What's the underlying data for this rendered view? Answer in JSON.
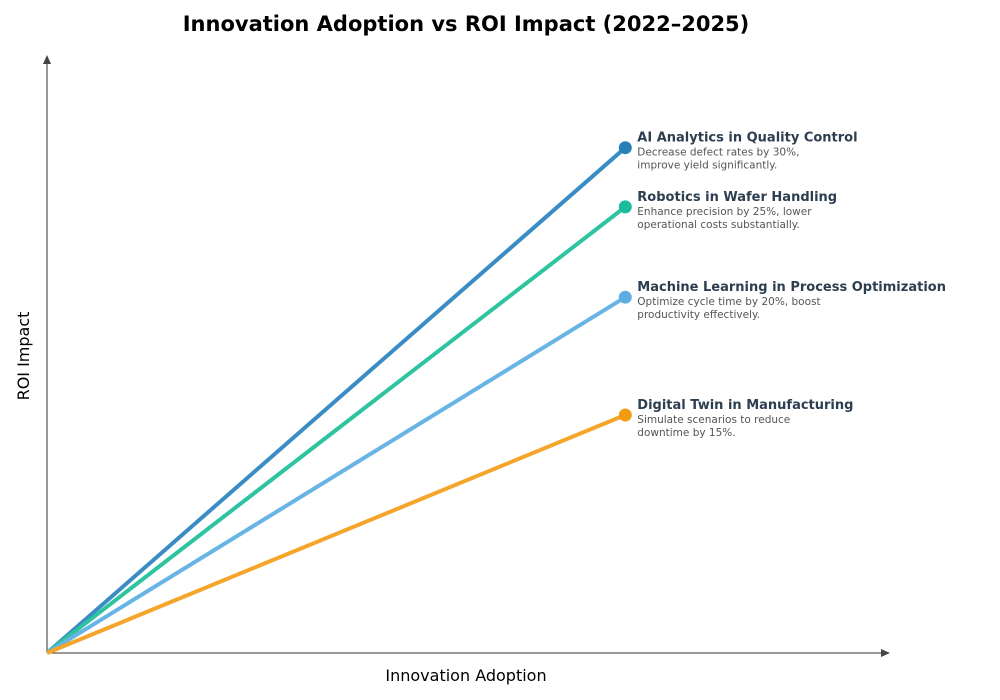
{
  "chart_data": {
    "type": "line",
    "title": "Innovation Adoption vs ROI Impact (2022–2025)",
    "xlabel": "Innovation Adoption",
    "ylabel": "ROI Impact",
    "xlim": [
      0,
      1
    ],
    "ylim": [
      0,
      1
    ],
    "grid": false,
    "ticks": false,
    "series": [
      {
        "name": "AI Analytics in Quality Control",
        "description": [
          "Decrease defect rates by 30%,",
          "improve yield significantly."
        ],
        "x": [
          0,
          0.686
        ],
        "y": [
          0,
          0.845
        ],
        "color": "#2980b9",
        "line_color": "#3a8cc4"
      },
      {
        "name": "Robotics in Wafer Handling",
        "description": [
          "Enhance precision by 25%, lower",
          "operational costs substantially."
        ],
        "x": [
          0,
          0.686
        ],
        "y": [
          0,
          0.746
        ],
        "color": "#1abc9c",
        "line_color": "#2ec4a0"
      },
      {
        "name": "Machine Learning in Process Optimization",
        "description": [
          "Optimize cycle time by 20%, boost",
          "productivity effectively."
        ],
        "x": [
          0,
          0.686
        ],
        "y": [
          0,
          0.595
        ],
        "color": "#5dade2",
        "line_color": "#68b4e4"
      },
      {
        "name": "Digital Twin in Manufacturing",
        "description": [
          "Simulate scenarios to reduce",
          "downtime by 15%."
        ],
        "x": [
          0,
          0.686
        ],
        "y": [
          0,
          0.398
        ],
        "color": "#f39c12",
        "line_color": "#f5a62a"
      }
    ]
  }
}
